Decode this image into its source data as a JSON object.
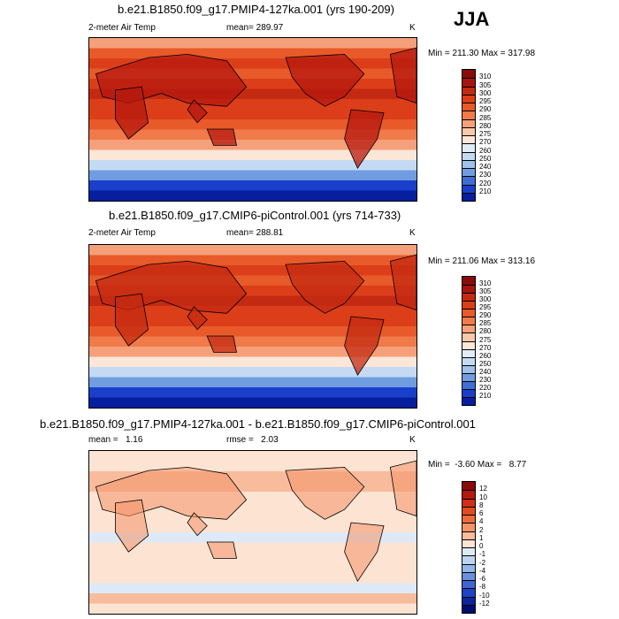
{
  "season": "JJA",
  "panels": [
    {
      "title": "b.e21.B1850.f09_g17.PMIP4-127ka.001 (yrs 190-209)",
      "left_label": "2-meter Air Temp",
      "stat_label": "mean= 289.97",
      "units": "K",
      "minmax": "Min = 211.30 Max = 317.98"
    },
    {
      "title": "b.e21.B1850.f09_g17.CMIP6-piControl.001 (yrs 714-733)",
      "left_label": "2-meter Air Temp",
      "stat_label": "mean= 288.81",
      "units": "K",
      "minmax": "Min = 211.06 Max = 313.16"
    },
    {
      "title": "b.e21.B1850.f09_g17.PMIP4-127ka.001 - b.e21.B1850.f09_g17.CMIP6-piControl.001",
      "left_label": "mean =   1.16",
      "stat_label": "rmse =   2.03",
      "units": "K",
      "minmax": "Min =  -3.60 Max =   8.77"
    }
  ],
  "chart_data": [
    {
      "type": "heatmap",
      "title": "b.e21.B1850.f09_g17.PMIP4-127ka.001 (yrs 190-209)",
      "variable": "2-meter Air Temp",
      "units": "K",
      "mean": 289.97,
      "min": 211.3,
      "max": 317.98,
      "colorbar_levels": [
        310,
        305,
        300,
        295,
        290,
        285,
        280,
        275,
        270,
        260,
        250,
        240,
        230,
        220,
        210
      ],
      "colors": [
        "#8b0a0a",
        "#a5160f",
        "#c42a12",
        "#dc3e19",
        "#e85a2a",
        "#f07a4a",
        "#f5a07a",
        "#f9c8a8",
        "#fbe6d8",
        "#e2ecf8",
        "#c4daf2",
        "#9fc1ea",
        "#6f9de0",
        "#3f6ed6",
        "#1a3fcb",
        "#071e9e"
      ]
    },
    {
      "type": "heatmap",
      "title": "b.e21.B1850.f09_g17.CMIP6-piControl.001 (yrs 714-733)",
      "variable": "2-meter Air Temp",
      "units": "K",
      "mean": 288.81,
      "min": 211.06,
      "max": 313.16,
      "colorbar_levels": [
        310,
        305,
        300,
        295,
        290,
        285,
        280,
        275,
        270,
        260,
        250,
        240,
        230,
        220,
        210
      ],
      "colors": [
        "#8b0a0a",
        "#a5160f",
        "#c42a12",
        "#dc3e19",
        "#e85a2a",
        "#f07a4a",
        "#f5a07a",
        "#f9c8a8",
        "#fbe6d8",
        "#e2ecf8",
        "#c4daf2",
        "#9fc1ea",
        "#6f9de0",
        "#3f6ed6",
        "#1a3fcb",
        "#071e9e"
      ]
    },
    {
      "type": "heatmap",
      "title": "b.e21.B1850.f09_g17.PMIP4-127ka.001 - b.e21.B1850.f09_g17.CMIP6-piControl.001",
      "units": "K",
      "mean": 1.16,
      "rmse": 2.03,
      "min": -3.6,
      "max": 8.77,
      "colorbar_levels": [
        12,
        10,
        8,
        6,
        4,
        2,
        1,
        0,
        -1,
        -2,
        -4,
        -6,
        -8,
        -10,
        -12
      ],
      "colors": [
        "#8b0a0a",
        "#b5180f",
        "#d22e15",
        "#e24b22",
        "#ed6c3e",
        "#f49468",
        "#f8bc9c",
        "#fde3d2",
        "#dde9f7",
        "#bcd4f0",
        "#93b6e8",
        "#6890dc",
        "#3d66d2",
        "#1f42c6",
        "#0a249f",
        "#020c6e"
      ]
    }
  ]
}
